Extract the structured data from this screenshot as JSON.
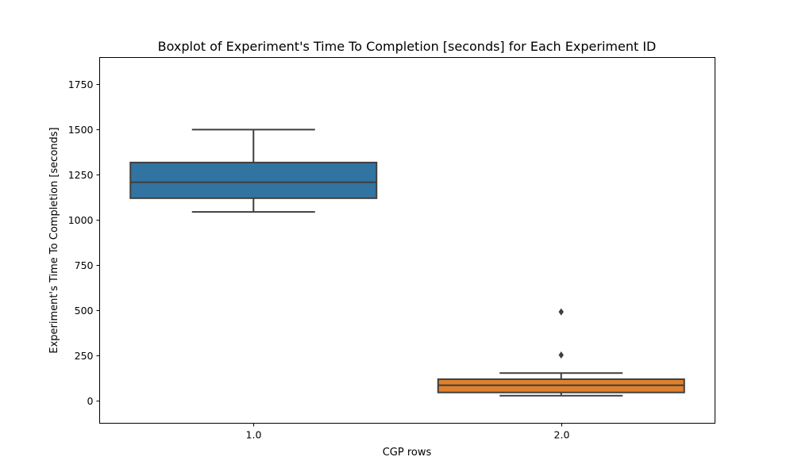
{
  "chart_data": {
    "type": "box",
    "title": "Boxplot of Experiment's Time To Completion [seconds] for Each Experiment ID",
    "xlabel": "CGP rows",
    "ylabel": "Experiment's Time To Completion [seconds]",
    "ylim": [
      -125,
      1895
    ],
    "yticks": [
      0,
      250,
      500,
      750,
      1000,
      1250,
      1500,
      1750
    ],
    "ytick_labels": [
      "0",
      "250",
      "500",
      "750",
      "1000",
      "1250",
      "1500",
      "1750"
    ],
    "categories": [
      "1.0",
      "2.0"
    ],
    "grid": false,
    "boxes": [
      {
        "category": "1.0",
        "color": "#3274a1",
        "whisker_low": 1042,
        "q1": 1118,
        "median": 1206,
        "q3": 1315,
        "whisker_high": 1497,
        "outliers": []
      },
      {
        "category": "2.0",
        "color": "#e1812c",
        "whisker_low": 27,
        "q1": 45,
        "median": 85,
        "q3": 118,
        "whisker_high": 152,
        "outliers": [
          252,
          490
        ]
      }
    ]
  }
}
